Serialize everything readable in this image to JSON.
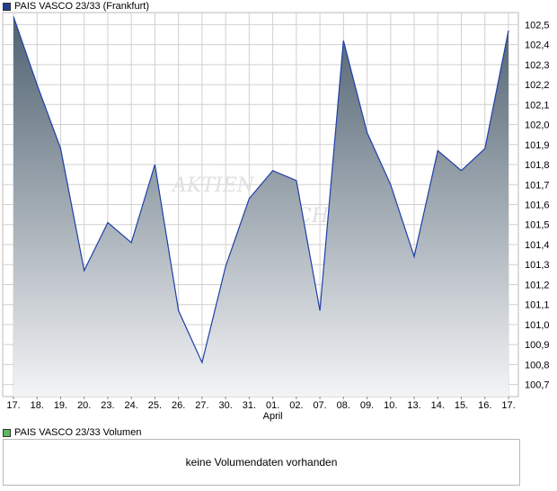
{
  "legend": {
    "price_label": "PAIS VASCO 23/33 (Frankfurt)",
    "price_color": "#1f3f8f",
    "volume_label": "PAIS VASCO 23/33 Volumen",
    "volume_color": "#5cb85c"
  },
  "volume": {
    "message": "keine Volumendaten vorhanden"
  },
  "watermark": {
    "text": "AKTIEN",
    "text2": "CHECK"
  },
  "chart_data": {
    "type": "area",
    "x": [
      "17.",
      "18.",
      "19.",
      "20.",
      "23.",
      "24.",
      "25.",
      "26.",
      "27.",
      "30.",
      "31.",
      "01.",
      "02.",
      "07.",
      "08.",
      "09.",
      "10.",
      "13.",
      "14.",
      "15.",
      "16.",
      "17."
    ],
    "x_month_labels": [
      {
        "index": 11,
        "label": "April"
      }
    ],
    "series": [
      {
        "values": [
          102.54,
          102.2,
          101.88,
          101.27,
          101.51,
          101.41,
          101.8,
          101.07,
          100.81,
          101.29,
          101.63,
          101.77,
          101.72,
          101.07,
          102.42,
          101.96,
          101.7,
          101.34,
          101.87,
          101.77,
          101.88,
          102.47
        ]
      }
    ],
    "ylim": [
      100.64,
      102.56
    ],
    "yticks": [
      "102,5",
      "102,4",
      "102,3",
      "102,2",
      "102,1",
      "102,0",
      "101,9",
      "101,8",
      "101,7",
      "101,6",
      "101,5",
      "101,4",
      "101,3",
      "101,2",
      "101,1",
      "101,0",
      "100,9",
      "100,8",
      "100,7"
    ],
    "ytick_values": [
      102.5,
      102.4,
      102.3,
      102.2,
      102.1,
      102.0,
      101.9,
      101.8,
      101.7,
      101.6,
      101.5,
      101.4,
      101.3,
      101.2,
      101.1,
      101.0,
      100.9,
      100.8,
      100.7
    ],
    "grid": true,
    "colors": {
      "line": "#1f3fa8",
      "fill_top": "#4f6170",
      "fill_bottom": "#f3f4f6",
      "grid": "#d0d0d0"
    }
  }
}
